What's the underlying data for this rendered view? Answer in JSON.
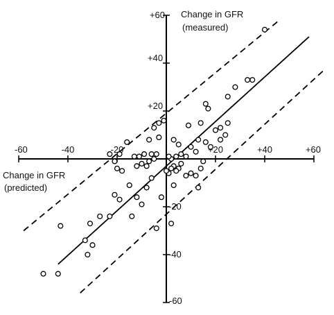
{
  "chart_data": {
    "type": "scatter",
    "xlabel": [
      "Change in GFR",
      "(predicted)"
    ],
    "ylabel": [
      "Change in GFR",
      "(measured)"
    ],
    "xlim": [
      -60,
      60
    ],
    "ylim": [
      -60,
      60
    ],
    "x_ticks": [
      {
        "value": -60,
        "label": "-60"
      },
      {
        "value": -40,
        "label": "-40"
      },
      {
        "value": -20,
        "label": "-20"
      },
      {
        "value": 20,
        "label": "+20"
      },
      {
        "value": 40,
        "label": "+40"
      },
      {
        "value": 60,
        "label": "+60"
      }
    ],
    "y_ticks": [
      {
        "value": 60,
        "label": "+60"
      },
      {
        "value": 40,
        "label": "+40"
      },
      {
        "value": 20,
        "label": "+20"
      },
      {
        "value": -20,
        "label": "-20"
      },
      {
        "value": -40,
        "label": "-40"
      },
      {
        "value": -60,
        "label": "-60"
      }
    ],
    "lines": [
      {
        "name": "identity",
        "style": "solid",
        "x": [
          -44,
          58
        ],
        "y": [
          -44,
          51
        ]
      },
      {
        "name": "upper-limit",
        "style": "dashed",
        "x": [
          -58,
          46
        ],
        "y": [
          -30,
          58
        ]
      },
      {
        "name": "lower-limit",
        "style": "dashed",
        "x": [
          -35,
          64
        ],
        "y": [
          -56,
          37
        ]
      }
    ],
    "points": [
      {
        "x": 40,
        "y": 54
      },
      {
        "x": 35,
        "y": 33
      },
      {
        "x": 33,
        "y": 33
      },
      {
        "x": 28,
        "y": 30
      },
      {
        "x": 25,
        "y": 26
      },
      {
        "x": 25,
        "y": 15
      },
      {
        "x": 22,
        "y": 13
      },
      {
        "x": 24,
        "y": 10
      },
      {
        "x": 22,
        "y": 8
      },
      {
        "x": 20,
        "y": 12
      },
      {
        "x": 17,
        "y": 21
      },
      {
        "x": 16,
        "y": 23
      },
      {
        "x": 18,
        "y": 5
      },
      {
        "x": 16,
        "y": 7
      },
      {
        "x": 14,
        "y": 15
      },
      {
        "x": 13,
        "y": 8
      },
      {
        "x": 12,
        "y": 3
      },
      {
        "x": 10,
        "y": 5
      },
      {
        "x": 9,
        "y": 14
      },
      {
        "x": 8,
        "y": 1
      },
      {
        "x": 6,
        "y": 2
      },
      {
        "x": 5,
        "y": 6
      },
      {
        "x": 4,
        "y": 1
      },
      {
        "x": 3,
        "y": 8
      },
      {
        "x": 2,
        "y": 0
      },
      {
        "x": 1,
        "y": 1
      },
      {
        "x": 15,
        "y": -1
      },
      {
        "x": 14,
        "y": -4
      },
      {
        "x": 13,
        "y": -12
      },
      {
        "x": 12,
        "y": -7
      },
      {
        "x": 10,
        "y": -6
      },
      {
        "x": 8,
        "y": -7
      },
      {
        "x": 6,
        "y": -2
      },
      {
        "x": 5,
        "y": -4
      },
      {
        "x": 4,
        "y": -5
      },
      {
        "x": 3,
        "y": -3
      },
      {
        "x": 2,
        "y": -4
      },
      {
        "x": 1,
        "y": -6
      },
      {
        "x": 0,
        "y": -5
      },
      {
        "x": 3,
        "y": -11
      },
      {
        "x": 2,
        "y": -27
      },
      {
        "x": -2,
        "y": -16
      },
      {
        "x": -4,
        "y": -29
      },
      {
        "x": -1,
        "y": 16
      },
      {
        "x": -3,
        "y": 15
      },
      {
        "x": -5,
        "y": 13
      },
      {
        "x": -7,
        "y": 8
      },
      {
        "x": -3,
        "y": 9
      },
      {
        "x": -4,
        "y": 2
      },
      {
        "x": -5,
        "y": 0
      },
      {
        "x": -6,
        "y": 2
      },
      {
        "x": -7,
        "y": -1
      },
      {
        "x": -8,
        "y": -3
      },
      {
        "x": -9,
        "y": 2
      },
      {
        "x": -10,
        "y": -2
      },
      {
        "x": -11,
        "y": 1
      },
      {
        "x": -12,
        "y": -3
      },
      {
        "x": -13,
        "y": 1
      },
      {
        "x": -6,
        "y": -8
      },
      {
        "x": -8,
        "y": -12
      },
      {
        "x": -12,
        "y": -16
      },
      {
        "x": -15,
        "y": -11
      },
      {
        "x": -16,
        "y": 7
      },
      {
        "x": -18,
        "y": -5
      },
      {
        "x": -20,
        "y": -4
      },
      {
        "x": -19,
        "y": 2
      },
      {
        "x": -21,
        "y": -1
      },
      {
        "x": -23,
        "y": 2
      },
      {
        "x": -19,
        "y": -17
      },
      {
        "x": -21,
        "y": -15
      },
      {
        "x": -10,
        "y": -19
      },
      {
        "x": -14,
        "y": -24
      },
      {
        "x": -23,
        "y": -24
      },
      {
        "x": -27,
        "y": -24
      },
      {
        "x": -31,
        "y": -27
      },
      {
        "x": -33,
        "y": -34
      },
      {
        "x": -30,
        "y": -36
      },
      {
        "x": -32,
        "y": -40
      },
      {
        "x": -43,
        "y": -28
      },
      {
        "x": -44,
        "y": -48
      },
      {
        "x": -50,
        "y": -48
      }
    ]
  }
}
